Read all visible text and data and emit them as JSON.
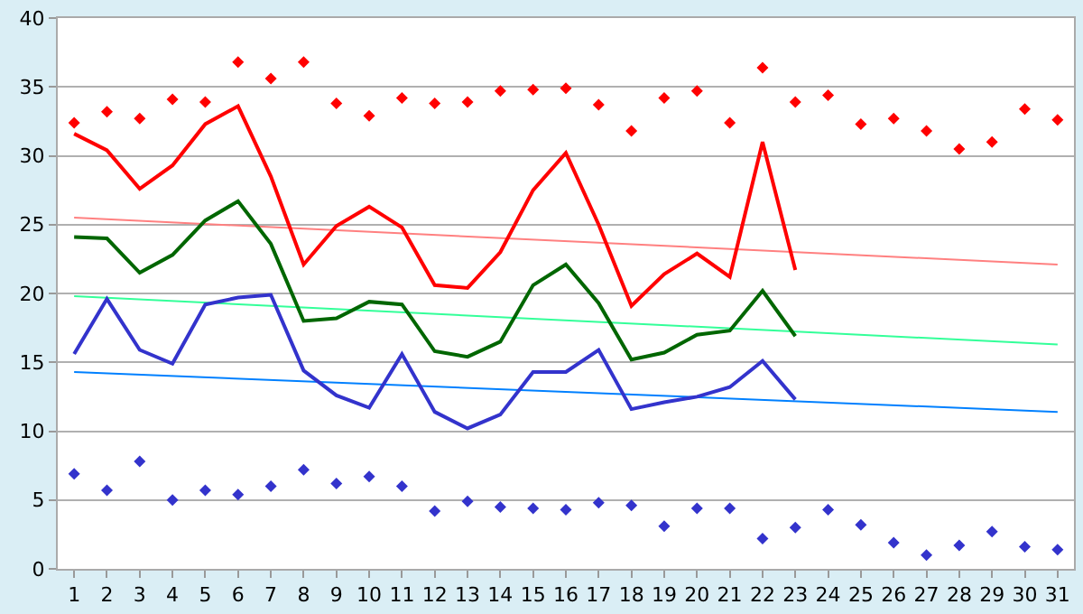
{
  "chart_data": {
    "type": "line",
    "x": [
      1,
      2,
      3,
      4,
      5,
      6,
      7,
      8,
      9,
      10,
      11,
      12,
      13,
      14,
      15,
      16,
      17,
      18,
      19,
      20,
      21,
      22,
      23,
      24,
      25,
      26,
      27,
      28,
      29,
      30,
      31
    ],
    "series": [
      {
        "type": "scatter",
        "marker": "diamond",
        "color": "#ff0000",
        "values": [
          32.4,
          33.2,
          32.7,
          34.1,
          33.9,
          36.8,
          35.6,
          36.8,
          33.8,
          32.9,
          34.2,
          33.8,
          33.9,
          34.7,
          34.8,
          34.9,
          33.7,
          31.8,
          34.2,
          34.7,
          32.4,
          36.4,
          33.9,
          34.4,
          32.3,
          32.7,
          31.8,
          30.5,
          31.0,
          33.4,
          32.6
        ]
      },
      {
        "type": "scatter",
        "marker": "diamond",
        "color": "#3333cc",
        "values": [
          6.9,
          5.7,
          7.8,
          5.0,
          5.7,
          5.4,
          6.0,
          7.2,
          6.2,
          6.7,
          6.0,
          4.2,
          4.9,
          4.5,
          4.4,
          4.3,
          4.8,
          4.6,
          3.1,
          4.4,
          4.4,
          2.2,
          3.0,
          4.3,
          3.2,
          1.9,
          1.0,
          1.7,
          2.7,
          1.6,
          1.4
        ]
      },
      {
        "color": "#ff8080",
        "x": [
          1,
          31
        ],
        "values": [
          25.5,
          22.1
        ]
      },
      {
        "color": "#33ff99",
        "x": [
          1,
          31
        ],
        "values": [
          19.8,
          16.3
        ]
      },
      {
        "color": "#0080ff",
        "x": [
          1,
          31
        ],
        "values": [
          14.3,
          11.4
        ]
      },
      {
        "color": "#ff0000",
        "x": [
          1,
          2,
          3,
          4,
          5,
          6,
          7,
          8,
          9,
          10,
          11,
          12,
          13,
          14,
          15,
          16,
          17,
          18,
          19,
          20,
          21,
          22,
          23
        ],
        "values": [
          31.6,
          30.4,
          27.6,
          29.3,
          32.3,
          33.6,
          28.5,
          22.1,
          24.9,
          26.3,
          24.8,
          20.6,
          20.4,
          23.0,
          27.5,
          30.2,
          25.0,
          19.1,
          21.4,
          22.9,
          21.2,
          31.0,
          21.7
        ]
      },
      {
        "color": "#006600",
        "x": [
          1,
          2,
          3,
          4,
          5,
          6,
          7,
          8,
          9,
          10,
          11,
          12,
          13,
          14,
          15,
          16,
          17,
          18,
          19,
          20,
          21,
          22,
          23
        ],
        "values": [
          24.1,
          24.0,
          21.5,
          22.8,
          25.3,
          26.7,
          23.6,
          18.0,
          18.2,
          19.4,
          19.2,
          15.8,
          15.4,
          16.5,
          20.6,
          22.1,
          19.3,
          15.2,
          15.7,
          17.0,
          17.3,
          20.2,
          16.9
        ]
      },
      {
        "color": "#3333cc",
        "x": [
          1,
          2,
          3,
          4,
          5,
          6,
          7,
          8,
          9,
          10,
          11,
          12,
          13,
          14,
          15,
          16,
          17,
          18,
          19,
          20,
          21,
          22,
          23
        ],
        "values": [
          15.6,
          19.6,
          15.9,
          14.9,
          19.2,
          19.7,
          19.9,
          14.4,
          12.6,
          11.7,
          15.6,
          11.4,
          10.2,
          11.2,
          14.3,
          14.3,
          15.9,
          11.6,
          12.1,
          12.5,
          13.2,
          15.1,
          12.3
        ]
      }
    ],
    "xlim": [
      0.5,
      31.5
    ],
    "xticks": [
      1,
      2,
      3,
      4,
      5,
      6,
      7,
      8,
      9,
      10,
      11,
      12,
      13,
      14,
      15,
      16,
      17,
      18,
      19,
      20,
      21,
      22,
      23,
      24,
      25,
      26,
      27,
      28,
      29,
      30,
      31
    ],
    "ylim": [
      0,
      40
    ],
    "yticks": [
      0,
      5,
      10,
      15,
      20,
      25,
      30,
      35,
      40
    ],
    "grid": "y"
  }
}
